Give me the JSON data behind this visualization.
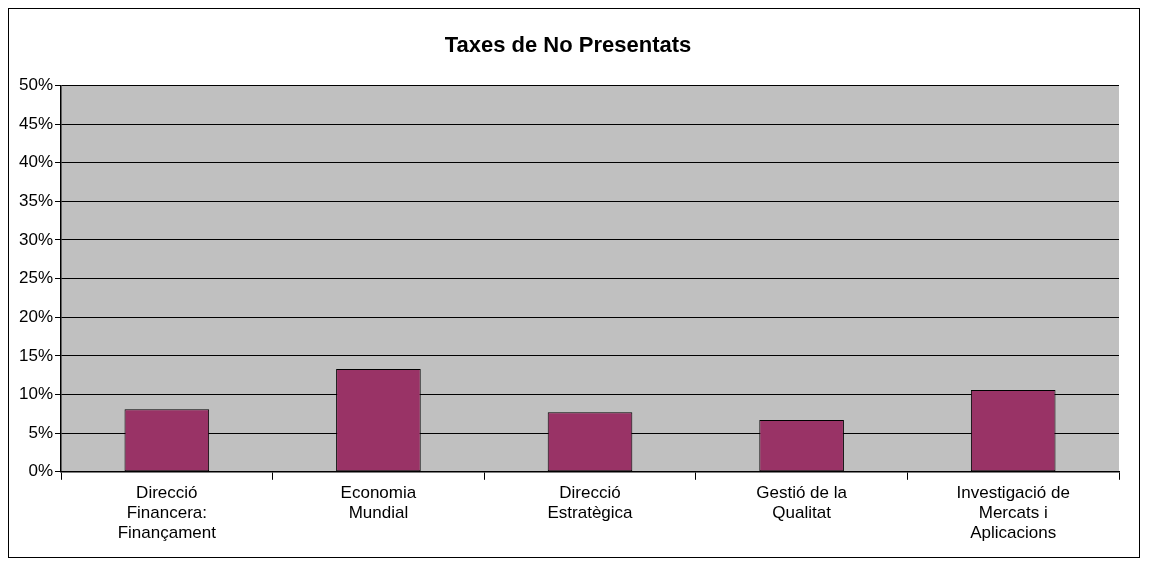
{
  "chart_data": {
    "type": "bar",
    "title": "Taxes de No Presentats",
    "categories": [
      "Direcció Financera: Finançament",
      "Economia Mundial",
      "Direcció Estratègica",
      "Gestió de la Qualitat",
      "Investigació de Mercats i Aplicacions"
    ],
    "values": [
      8.1,
      13.3,
      7.7,
      6.7,
      10.6
    ],
    "color": "#993366",
    "ylim": [
      0,
      50
    ],
    "yticks": [
      {
        "value": 0,
        "label": "0%"
      },
      {
        "value": 5,
        "label": "5%"
      },
      {
        "value": 10,
        "label": "10%"
      },
      {
        "value": 15,
        "label": "15%"
      },
      {
        "value": 20,
        "label": "20%"
      },
      {
        "value": 25,
        "label": "25%"
      },
      {
        "value": 30,
        "label": "30%"
      },
      {
        "value": 35,
        "label": "35%"
      },
      {
        "value": 40,
        "label": "40%"
      },
      {
        "value": 45,
        "label": "45%"
      },
      {
        "value": 50,
        "label": "50%"
      }
    ],
    "grid": "y"
  }
}
